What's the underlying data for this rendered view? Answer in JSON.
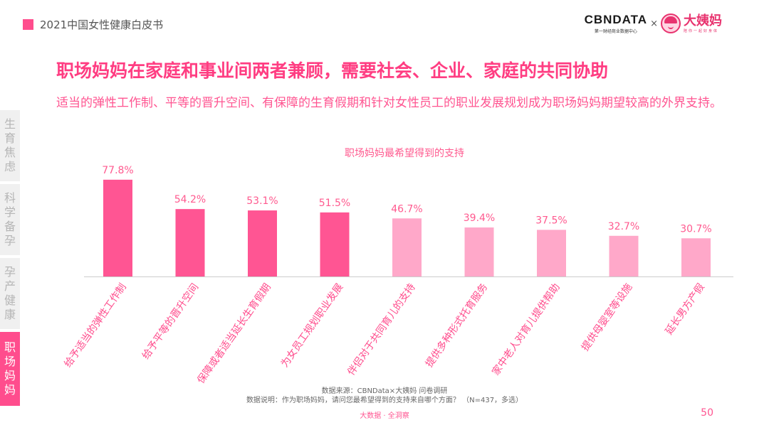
{
  "header": {
    "report_title": "2021中国女性健康白皮书",
    "brand_cbn": "CBNDATA",
    "brand_cbn_sub": "第一财经商业数据中心",
    "brand_x": "×",
    "brand_dym": "大姨妈",
    "brand_dym_slogan": "陪你一起好身体"
  },
  "side_nav": [
    {
      "label": "生育焦虑",
      "active": false
    },
    {
      "label": "科学备孕",
      "active": false
    },
    {
      "label": "孕产健康",
      "active": false
    },
    {
      "label": "职场妈妈",
      "active": true
    }
  ],
  "title": "职场妈妈在家庭和事业间两者兼顾，需要社会、企业、家庭的共同协助",
  "subtitle": "适当的弹性工作制、平等的晋升空间、有保障的生育假期和针对女性员工的职业发展规划成为职场妈妈期望较高的外界支持。",
  "chart_data": {
    "type": "bar",
    "title": "职场妈妈最希望得到的支持",
    "categories": [
      "给予适当的弹性工作制",
      "给予平等的晋升空间",
      "保障或者适当延长生育假期",
      "为女员工规划职业发展",
      "伴侣对于共同育儿的支持",
      "提供多种形式托育服务",
      "家中老人对育儿提供帮助",
      "提供母婴室等设施",
      "延长男方产假"
    ],
    "values": [
      77.8,
      54.2,
      53.1,
      51.5,
      46.7,
      39.4,
      37.5,
      32.7,
      30.7
    ],
    "value_labels": [
      "77.8%",
      "54.2%",
      "53.1%",
      "51.5%",
      "46.7%",
      "39.4%",
      "37.5%",
      "32.7%",
      "30.7%"
    ],
    "unit": "%",
    "ylim": [
      0,
      100
    ],
    "grid": false,
    "colors": {
      "highlight": "#ff5593",
      "normal": "#ffa8c9",
      "axis": "#cccccc"
    },
    "highlight_count": 4
  },
  "footer": {
    "source": "数据来源：CBNData×大姨妈 问卷调研",
    "note": "数据说明：作为职场妈妈，请问您最希望得到的支持来自哪个方面？ （N=437，多选）",
    "tagline": "大数据 · 全洞察",
    "page_number": "50"
  }
}
